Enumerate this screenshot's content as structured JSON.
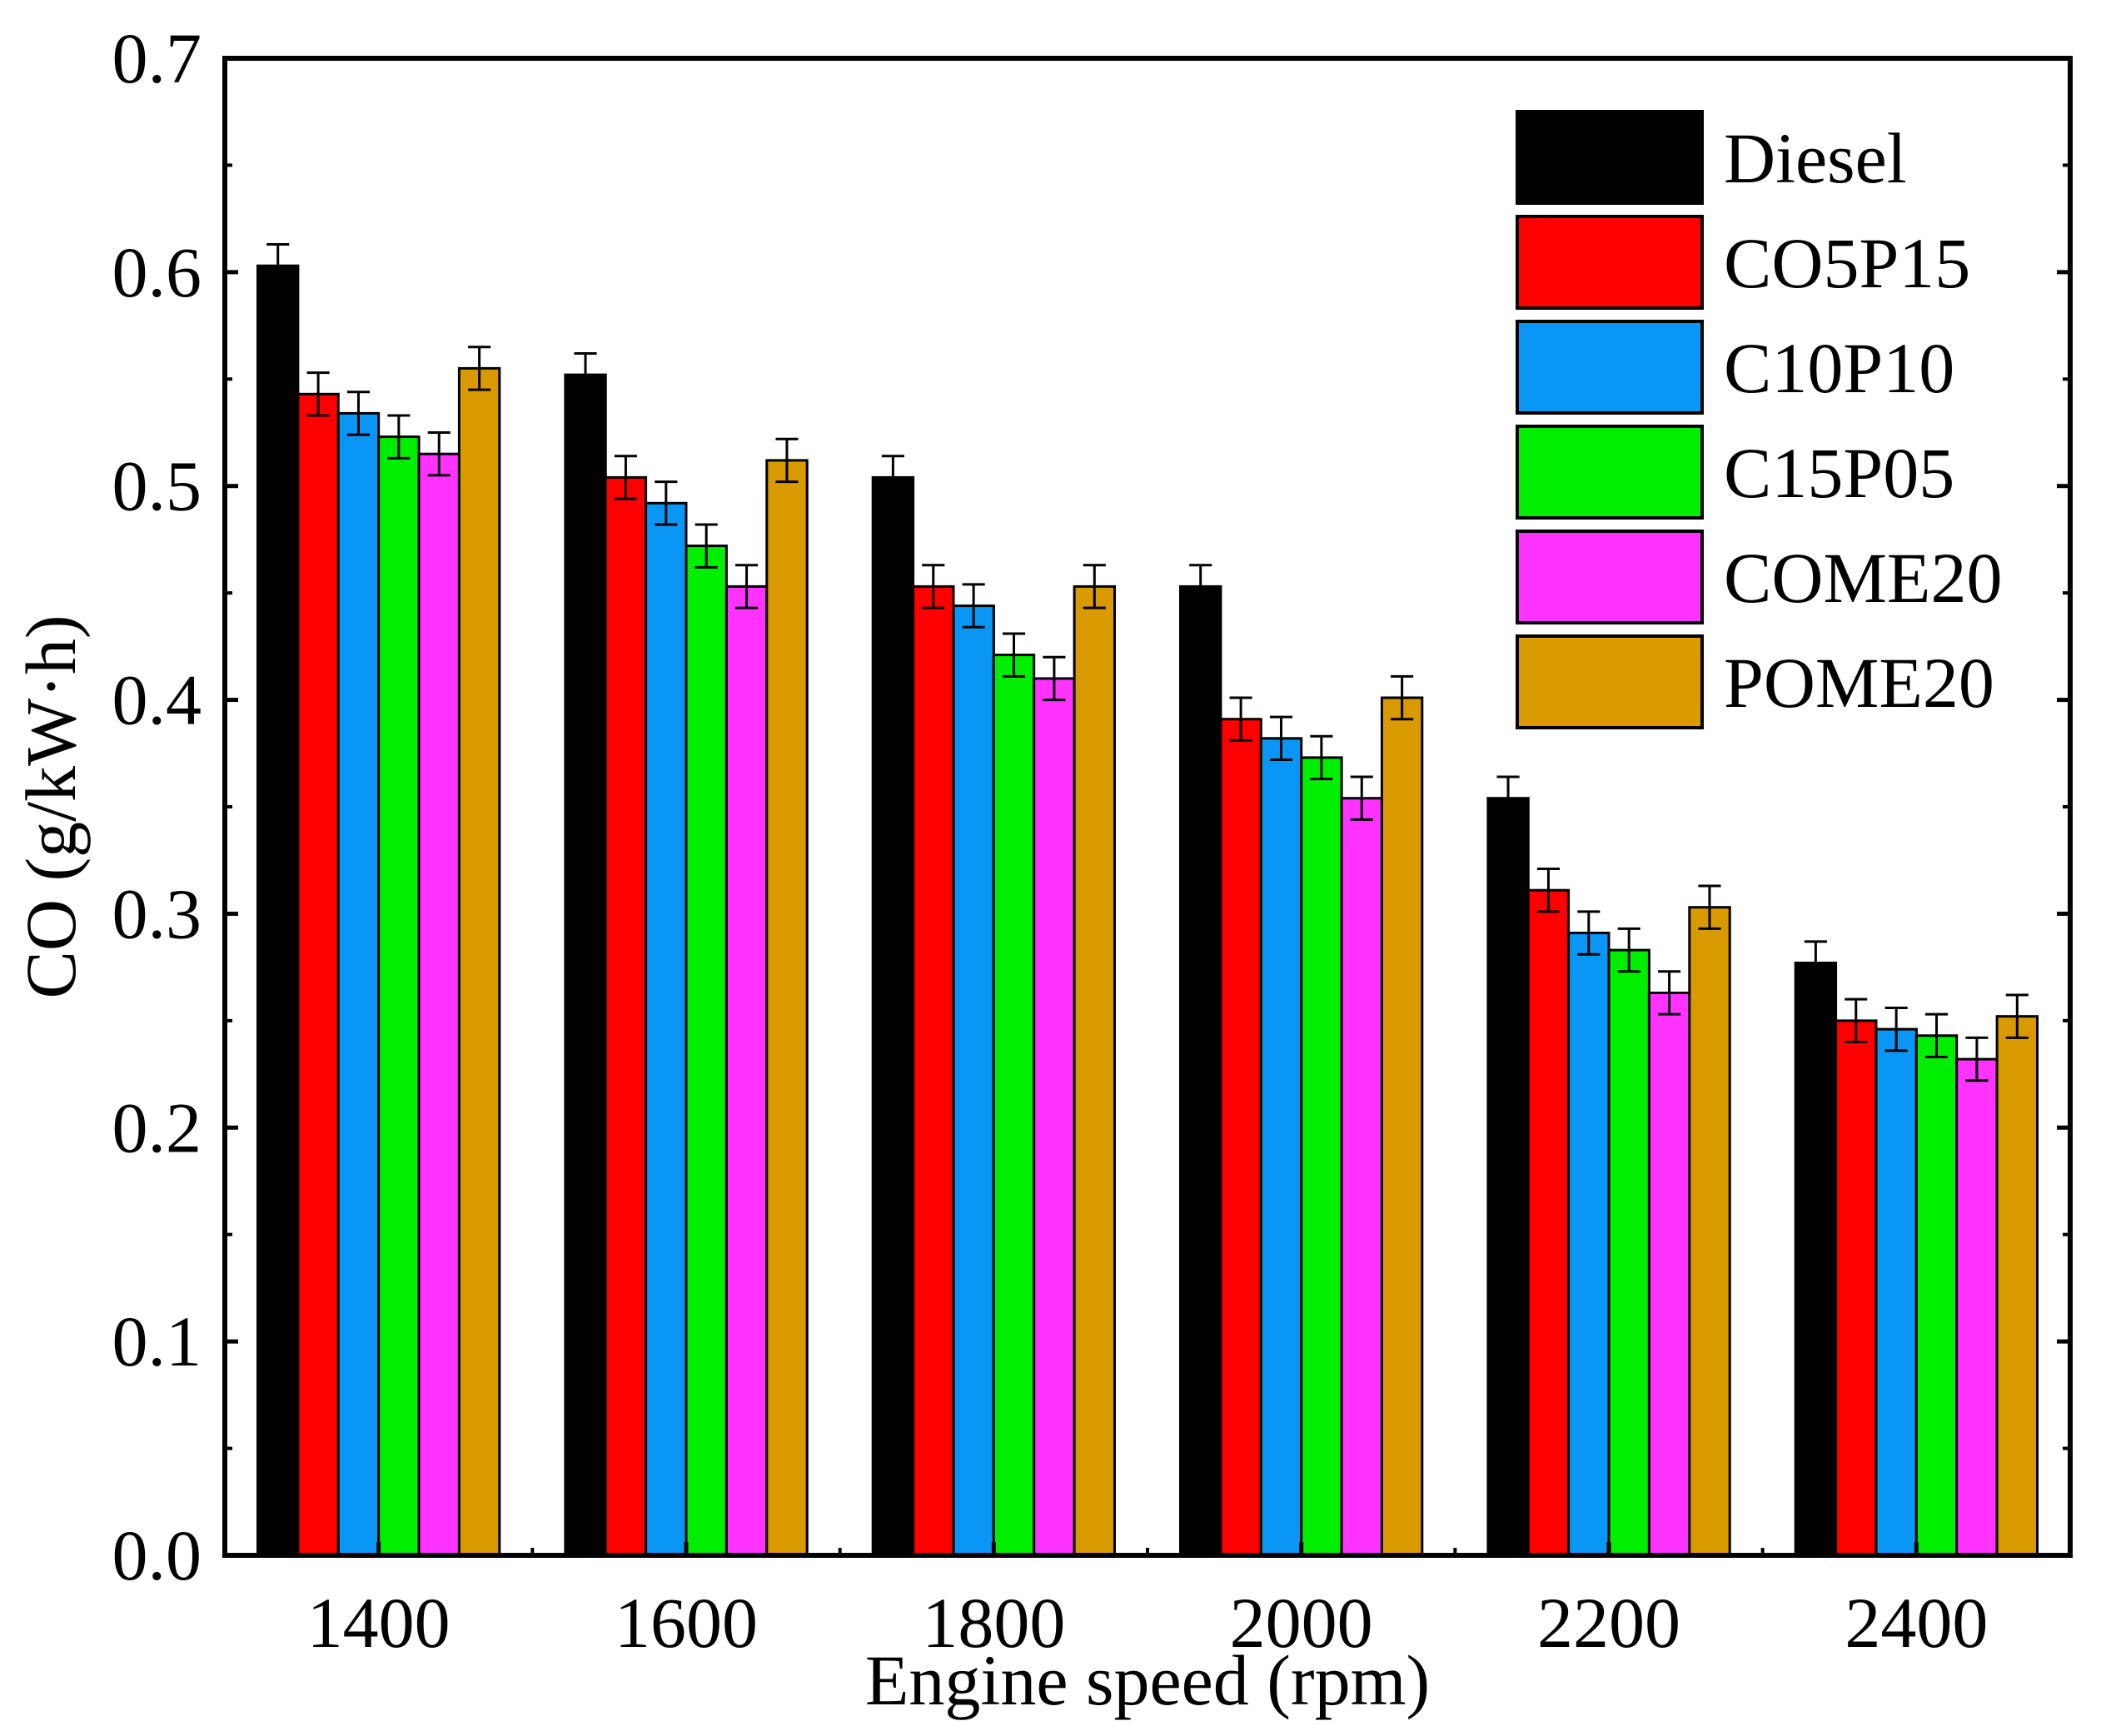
{
  "chart_data": {
    "type": "bar",
    "title": "",
    "xlabel": "Engine speed (rpm)",
    "ylabel": "CO (g/kW·h)",
    "ylim": [
      0,
      0.7
    ],
    "yticks": [
      "0.0",
      "0.1",
      "0.2",
      "0.3",
      "0.4",
      "0.5",
      "0.6",
      "0.7"
    ],
    "grid": false,
    "legend_position": "top-right",
    "categories": [
      "1400",
      "1600",
      "1800",
      "2000",
      "2200",
      "2400"
    ],
    "error": 0.01,
    "series": [
      {
        "name": "Diesel",
        "color": "#000000",
        "values": [
          0.603,
          0.552,
          0.504,
          0.453,
          0.354,
          0.277
        ]
      },
      {
        "name": "CO5P15",
        "color": "#ff0000",
        "values": [
          0.543,
          0.504,
          0.453,
          0.391,
          0.311,
          0.25
        ]
      },
      {
        "name": "C10P10",
        "color": "#0a96f5",
        "values": [
          0.534,
          0.492,
          0.444,
          0.382,
          0.291,
          0.246
        ]
      },
      {
        "name": "C15P05",
        "color": "#00ee00",
        "values": [
          0.523,
          0.472,
          0.421,
          0.373,
          0.283,
          0.243
        ]
      },
      {
        "name": "COME20",
        "color": "#ff33ff",
        "values": [
          0.515,
          0.453,
          0.41,
          0.354,
          0.263,
          0.232
        ]
      },
      {
        "name": "POME20",
        "color": "#d99a00",
        "values": [
          0.555,
          0.512,
          0.453,
          0.401,
          0.303,
          0.252
        ]
      }
    ]
  }
}
